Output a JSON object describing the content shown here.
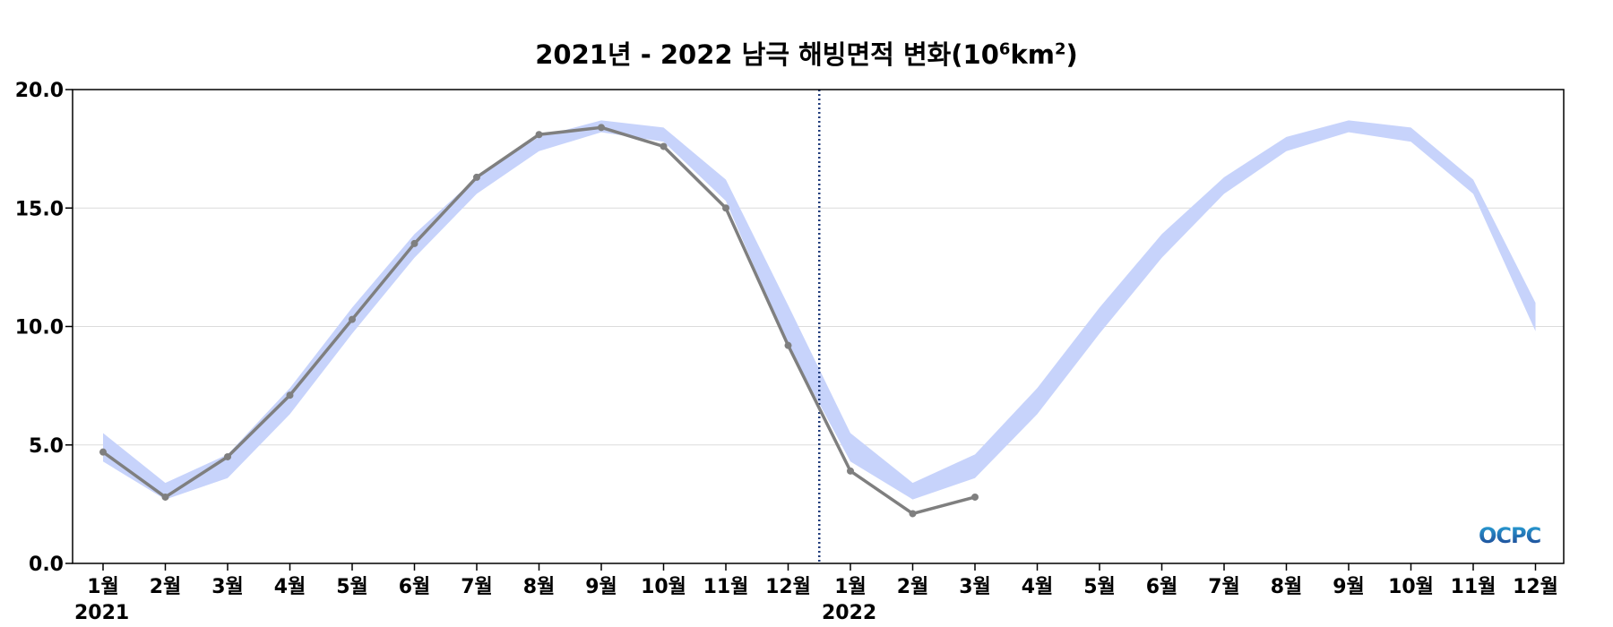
{
  "chart_data": {
    "type": "line",
    "title_main": "2021년 - 2022 남극 해빙면적 변화(10",
    "title_sup1": "6",
    "title_mid": "km",
    "title_sup2": "2",
    "title_end": ")",
    "ylim": [
      0,
      20
    ],
    "yticks": [
      "0.0",
      "5.0",
      "10.0",
      "15.0",
      "20.0"
    ],
    "x_labels": [
      "1월",
      "2월",
      "3월",
      "4월",
      "5월",
      "6월",
      "7월",
      "8월",
      "9월",
      "10월",
      "11월",
      "12월",
      "1월",
      "2월",
      "3월",
      "4월",
      "5월",
      "6월",
      "7월",
      "8월",
      "9월",
      "10월",
      "11월",
      "12월"
    ],
    "year_labels": [
      {
        "text": "2021",
        "index": 0
      },
      {
        "text": "2022",
        "index": 12
      }
    ],
    "divider_index": 11.5,
    "grid": "horizontal",
    "band": {
      "lower": [
        4.3,
        2.7,
        3.6,
        6.3,
        9.7,
        12.9,
        15.6,
        17.4,
        18.2,
        17.8,
        15.3,
        9.2,
        4.3,
        2.7,
        3.6,
        6.3,
        9.7,
        12.9,
        15.6,
        17.4,
        18.2,
        17.8,
        15.6,
        9.8
      ],
      "upper": [
        5.5,
        3.4,
        4.6,
        7.4,
        10.8,
        13.9,
        16.3,
        18.0,
        18.7,
        18.4,
        16.2,
        10.9,
        5.5,
        3.4,
        4.6,
        7.4,
        10.8,
        13.9,
        16.3,
        18.0,
        18.7,
        18.4,
        16.2,
        11.0
      ],
      "color": "#c7d3fb"
    },
    "series": [
      {
        "values": [
          4.7,
          2.8,
          4.5,
          7.1,
          10.3,
          13.5,
          16.3,
          18.1,
          18.4,
          17.6,
          15.0,
          9.2,
          3.9,
          2.1,
          2.8
        ],
        "color": "#7f7f7f"
      }
    ],
    "divider_color": "#1f3a7a"
  },
  "logo": {
    "text": "OCPC",
    "color_top": "#29a6d9",
    "color_bottom": "#1d3f8f"
  }
}
